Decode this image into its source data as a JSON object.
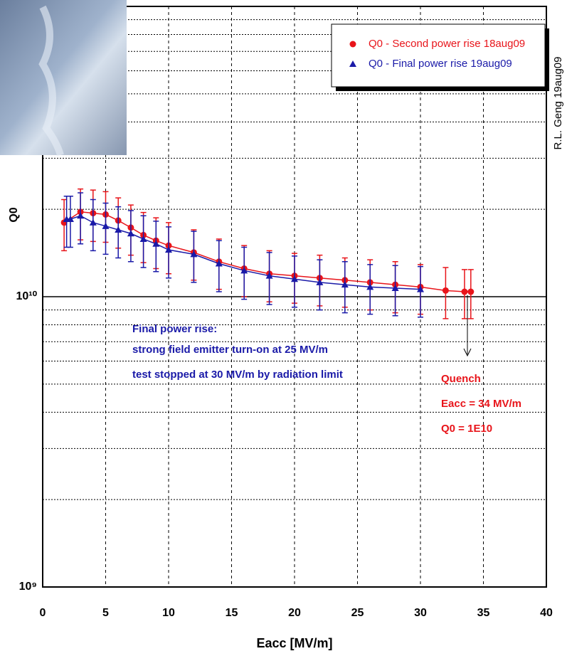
{
  "chart_data": {
    "type": "scatter",
    "xlabel": "Eacc [MV/m]",
    "ylabel": "Q0",
    "log_y": true,
    "grid": true,
    "legend_position": "upper right",
    "xlim": [
      0,
      40
    ],
    "xticks": [
      0,
      5,
      10,
      15,
      20,
      25,
      30,
      35,
      40
    ],
    "ylim": [
      1000000000,
      100000000000
    ],
    "yticks": [
      {
        "value": 1000000000,
        "label": "10⁹"
      },
      {
        "value": 10000000000,
        "label": "10¹⁰"
      }
    ],
    "y_minor_grid": [
      2000000000,
      3000000000,
      4000000000,
      5000000000,
      6000000000,
      7000000000,
      8000000000,
      9000000000,
      20000000000,
      30000000000,
      40000000000,
      50000000000,
      60000000000,
      70000000000,
      80000000000,
      90000000000
    ],
    "series": [
      {
        "name": "Q0 - Second power rise 18aug09",
        "color": "#e8141a",
        "marker": "circle",
        "x": [
          1.7,
          3,
          4,
          5,
          6,
          7,
          8,
          9,
          10,
          12,
          14,
          16,
          18,
          20,
          22,
          24,
          26,
          28,
          30,
          32,
          33.5,
          34
        ],
        "values": [
          18000000000,
          19600000000,
          19400000000,
          19200000000,
          18300000000,
          17300000000,
          16300000000,
          15600000000,
          15000000000,
          14200000000,
          13200000000,
          12500000000,
          12000000000,
          11800000000,
          11600000000,
          11400000000,
          11200000000,
          11000000000,
          10800000000,
          10500000000,
          10400000000,
          10400000000
        ],
        "errors": [
          3600000000,
          3900000000,
          3900000000,
          3800000000,
          3600000000,
          3400000000,
          3200000000,
          3100000000,
          3000000000,
          2800000000,
          2600000000,
          2500000000,
          2400000000,
          2300000000,
          2300000000,
          2200000000,
          2200000000,
          2200000000,
          2100000000,
          2100000000,
          2000000000,
          2000000000
        ]
      },
      {
        "name": "Q0 - Final power rise 19aug09",
        "color": "#1a1aa8",
        "marker": "triangle",
        "x": [
          1.9,
          2.2,
          3,
          4,
          5,
          6,
          7,
          8,
          9,
          10,
          12,
          14,
          16,
          18,
          20,
          22,
          24,
          26,
          28,
          30
        ],
        "values": [
          18500000000,
          18500000000,
          19000000000,
          18000000000,
          17500000000,
          17000000000,
          16500000000,
          15800000000,
          15200000000,
          14500000000,
          14000000000,
          13000000000,
          12300000000,
          11800000000,
          11500000000,
          11200000000,
          11000000000,
          10800000000,
          10700000000,
          10600000000
        ],
        "errors": [
          3700000000,
          3700000000,
          3800000000,
          3600000000,
          3500000000,
          3400000000,
          3300000000,
          3200000000,
          3000000000,
          2900000000,
          2800000000,
          2600000000,
          2500000000,
          2400000000,
          2300000000,
          2200000000,
          2200000000,
          2100000000,
          2100000000,
          2100000000
        ]
      }
    ],
    "annotations": {
      "author": "R.L. Geng 19aug09",
      "final_power_rise": [
        "Final power rise:",
        "strong field emitter turn-on at 25 MV/m",
        "test stopped at 30 MV/m by radiation limit"
      ],
      "quench": [
        "Quench",
        "Eacc = 34 MV/m",
        "Q0 = 1E10"
      ]
    }
  }
}
